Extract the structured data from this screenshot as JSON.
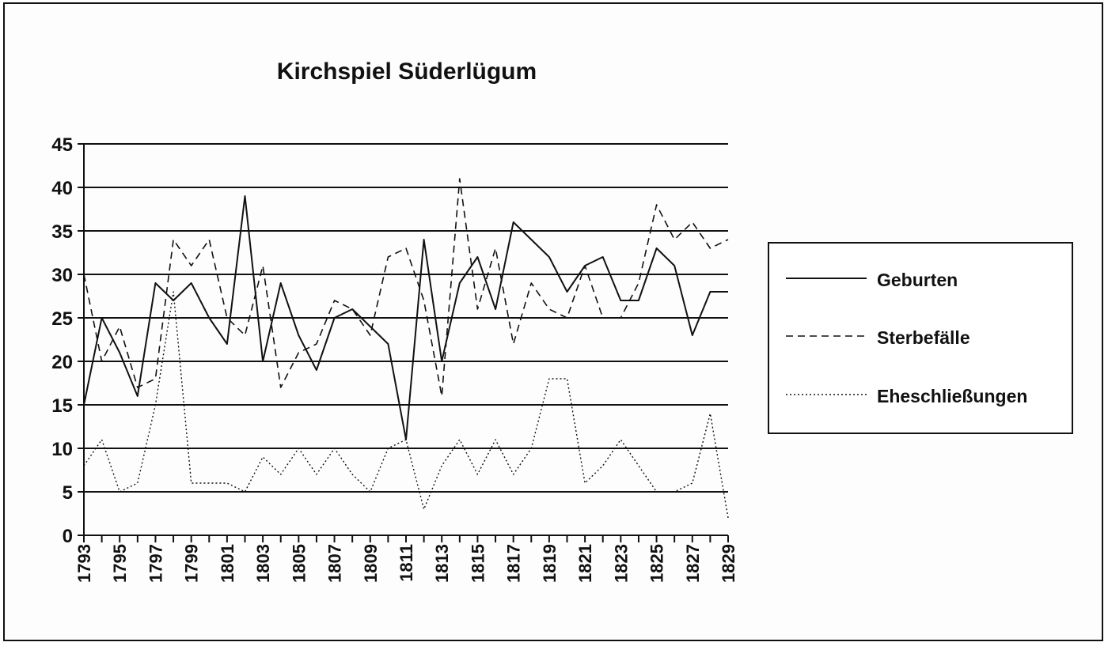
{
  "chart_data": {
    "type": "line",
    "title": "Kirchspiel Süderlügum",
    "xlabel": "",
    "ylabel": "",
    "ylim": [
      0,
      45
    ],
    "yticks": [
      0,
      5,
      10,
      15,
      20,
      25,
      30,
      35,
      40,
      45
    ],
    "grid": "horizontal",
    "legend_position": "right",
    "x": [
      1793,
      1794,
      1795,
      1796,
      1797,
      1798,
      1799,
      1800,
      1801,
      1802,
      1803,
      1804,
      1805,
      1806,
      1807,
      1808,
      1809,
      1810,
      1811,
      1812,
      1813,
      1814,
      1815,
      1816,
      1817,
      1818,
      1819,
      1820,
      1821,
      1822,
      1823,
      1824,
      1825,
      1826,
      1827,
      1828,
      1829
    ],
    "xtick_labels": [
      "1793",
      "1795",
      "1797",
      "1799",
      "1801",
      "1803",
      "1805",
      "1807",
      "1809",
      "1811",
      "1813",
      "1815",
      "1817",
      "1819",
      "1821",
      "1823",
      "1825",
      "1827",
      "1829"
    ],
    "series": [
      {
        "name": "Geburten",
        "style": "solid",
        "values": [
          15,
          25,
          21,
          16,
          29,
          27,
          29,
          25,
          22,
          39,
          20,
          29,
          23,
          19,
          25,
          26,
          24,
          22,
          11,
          34,
          20,
          29,
          32,
          26,
          36,
          34,
          32,
          28,
          31,
          32,
          27,
          27,
          33,
          31,
          23,
          28,
          28
        ]
      },
      {
        "name": "Sterbefälle",
        "style": "dashed",
        "values": [
          30,
          20,
          24,
          17,
          18,
          34,
          31,
          34,
          25,
          23,
          31,
          17,
          21,
          22,
          27,
          26,
          23,
          32,
          33,
          27,
          16,
          41,
          26,
          33,
          22,
          29,
          26,
          25,
          31,
          25,
          25,
          29,
          38,
          34,
          36,
          33,
          34
        ]
      },
      {
        "name": "Eheschließungen",
        "style": "dotted",
        "values": [
          8,
          11,
          5,
          6,
          15,
          28,
          6,
          6,
          6,
          5,
          9,
          7,
          10,
          7,
          10,
          7,
          5,
          10,
          11,
          3,
          8,
          11,
          7,
          11,
          7,
          10,
          18,
          18,
          6,
          8,
          11,
          8,
          5,
          5,
          6,
          14,
          2
        ]
      }
    ]
  }
}
